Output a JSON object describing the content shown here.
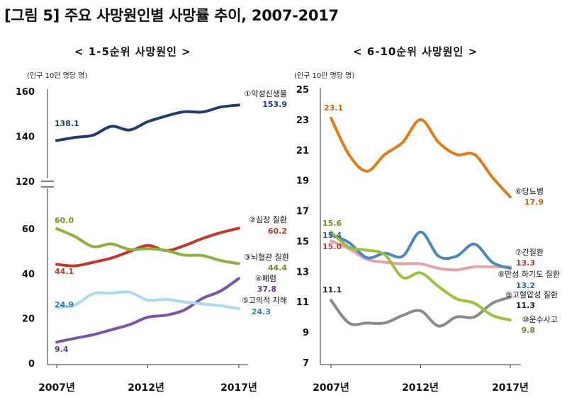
{
  "title": "[그림 5] 주요 사망원인별 사망률 추이, 2007-2017",
  "charts": [
    {
      "subtitle": "< 1-5순위 사망원인 >",
      "unit": "(인구 10만 명당 명)",
      "x_ticks": [
        "2007년",
        "2012년",
        "2017년"
      ]
    },
    {
      "subtitle": "< 6-10순위 사망원인 >",
      "unit": "(인구 10만 명당 명)",
      "x_ticks": [
        "2007년",
        "2012년",
        "2017년"
      ]
    }
  ],
  "chart_data": [
    {
      "type": "line",
      "title": "< 1-5순위 사망원인 >",
      "ylabel": "(인구 10만 명당 명)",
      "x": [
        2007,
        2008,
        2009,
        2010,
        2011,
        2012,
        2013,
        2014,
        2015,
        2016,
        2017
      ],
      "x_tick_labels": [
        "2007년",
        "2012년",
        "2017년"
      ],
      "y_axis_break": [
        60,
        120
      ],
      "ylim_lower": [
        0,
        60
      ],
      "ylim_upper": [
        120,
        160
      ],
      "yticks": [
        0,
        20,
        40,
        60,
        120,
        140,
        160
      ],
      "grid": false,
      "series": [
        {
          "name": "①악성신생물",
          "color": "#1f3f6e",
          "values": [
            138.1,
            139.5,
            140.5,
            144.4,
            142.8,
            146.5,
            149.0,
            150.9,
            150.8,
            153.0,
            153.9
          ],
          "start_label": "138.1",
          "end_label": "153.9"
        },
        {
          "name": "②심장 질환",
          "color": "#c0392b",
          "values": [
            44.1,
            43.4,
            45.0,
            46.9,
            49.8,
            52.5,
            50.2,
            52.4,
            55.6,
            58.2,
            60.2
          ],
          "start_label": "44.1",
          "end_label": "60.2"
        },
        {
          "name": "③뇌혈관 질환",
          "color": "#8db13c",
          "values": [
            60.0,
            56.5,
            52.0,
            53.2,
            50.7,
            51.1,
            50.3,
            48.2,
            48.0,
            45.8,
            44.4
          ],
          "start_label": "60.0",
          "end_label": "44.4"
        },
        {
          "name": "④폐렴",
          "color": "#7b52ab",
          "values": [
            9.4,
            11.1,
            12.7,
            14.9,
            17.2,
            20.5,
            21.4,
            23.7,
            28.9,
            32.2,
            37.8
          ],
          "start_label": "9.4",
          "end_label": "37.8"
        },
        {
          "name": "⑤고의적 자해",
          "color": "#a8dcee",
          "values": [
            24.9,
            26.0,
            31.0,
            31.2,
            31.7,
            28.1,
            28.5,
            27.3,
            26.5,
            25.6,
            24.3
          ],
          "start_label": "24.9",
          "end_label": "24.3"
        }
      ]
    },
    {
      "type": "line",
      "title": "< 6-10순위 사망원인 >",
      "ylabel": "(인구 10만 명당 명)",
      "x": [
        2007,
        2008,
        2009,
        2010,
        2011,
        2012,
        2013,
        2014,
        2015,
        2016,
        2017
      ],
      "x_tick_labels": [
        "2007년",
        "2012년",
        "2017년"
      ],
      "ylim": [
        7,
        25
      ],
      "yticks": [
        7,
        9,
        11,
        13,
        15,
        17,
        19,
        21,
        23,
        25
      ],
      "grid": false,
      "series": [
        {
          "name": "⑥당뇨병",
          "color": "#e07b18",
          "values": [
            23.1,
            20.7,
            19.6,
            20.7,
            21.5,
            23.0,
            21.5,
            20.7,
            20.7,
            19.2,
            17.9
          ],
          "start_label": "23.1",
          "end_label": "17.9"
        },
        {
          "name": "⑦간질환",
          "color": "#e8a3a8",
          "values": [
            15.0,
            14.5,
            13.8,
            13.6,
            13.5,
            13.5,
            13.2,
            13.1,
            13.3,
            13.3,
            13.3
          ],
          "start_label": "15.0",
          "end_label": "13.3"
        },
        {
          "name": "⑧만성 하기도 질환",
          "color": "#4a86c5",
          "values": [
            15.4,
            14.9,
            13.9,
            14.2,
            14.0,
            15.6,
            14.0,
            14.0,
            14.8,
            13.6,
            13.2
          ],
          "start_label": "15.4",
          "end_label": "13.2"
        },
        {
          "name": "⑨고혈압성 질환",
          "color": "#8a8a8a",
          "values": [
            11.1,
            9.6,
            9.6,
            9.6,
            10.1,
            10.4,
            9.4,
            10.0,
            10.0,
            10.9,
            11.3
          ],
          "start_label": "11.1",
          "end_label": "11.3"
        },
        {
          "name": "⑩운수사고",
          "color": "#9bc03c",
          "values": [
            15.6,
            14.6,
            14.4,
            14.1,
            12.6,
            12.9,
            12.0,
            11.2,
            10.9,
            10.1,
            9.8
          ],
          "start_label": "15.6",
          "end_label": "9.8"
        }
      ]
    }
  ]
}
